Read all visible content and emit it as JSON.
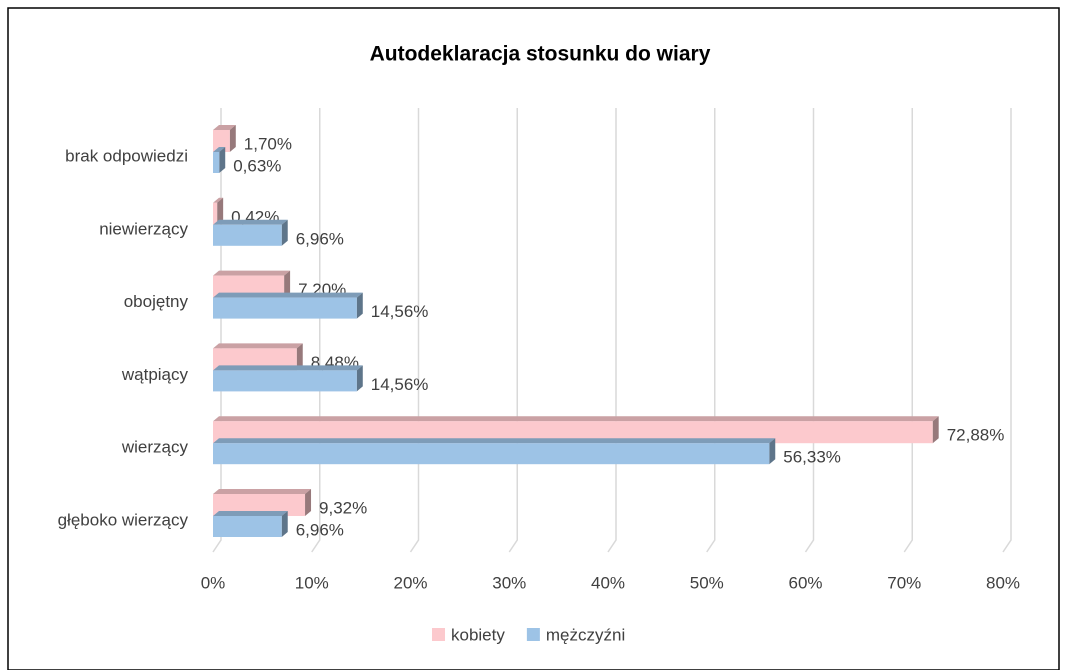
{
  "chart_data": {
    "type": "bar",
    "orientation": "horizontal",
    "title": "Autodeklaracja stosunku do wiary",
    "categories": [
      "brak odpowiedzi",
      "niewierzący",
      "obojętny",
      "wątpiący",
      "wierzący",
      "głęboko wierzący"
    ],
    "series": [
      {
        "name": "kobiety",
        "color": "#fcc9cd",
        "values": [
          1.7,
          0.42,
          7.2,
          8.48,
          72.88,
          9.32
        ],
        "value_labels": [
          "1,70%",
          "0,42%",
          "7,20%",
          "8,48%",
          "72,88%",
          "9,32%"
        ]
      },
      {
        "name": "mężczyźni",
        "color": "#9dc3e6",
        "values": [
          0.63,
          6.96,
          14.56,
          14.56,
          56.33,
          6.96
        ],
        "value_labels": [
          "0,63%",
          "6,96%",
          "14,56%",
          "14,56%",
          "56,33%",
          "6,96%"
        ]
      }
    ],
    "xlim": [
      0,
      80
    ],
    "xticks": [
      {
        "value": 0,
        "label": "0%"
      },
      {
        "value": 10,
        "label": "10%"
      },
      {
        "value": 20,
        "label": "20%"
      },
      {
        "value": 30,
        "label": "30%"
      },
      {
        "value": 40,
        "label": "40%"
      },
      {
        "value": 50,
        "label": "50%"
      },
      {
        "value": 60,
        "label": "60%"
      },
      {
        "value": 70,
        "label": "70%"
      },
      {
        "value": 80,
        "label": "80%"
      }
    ],
    "grid": true,
    "legend": "bottom"
  }
}
